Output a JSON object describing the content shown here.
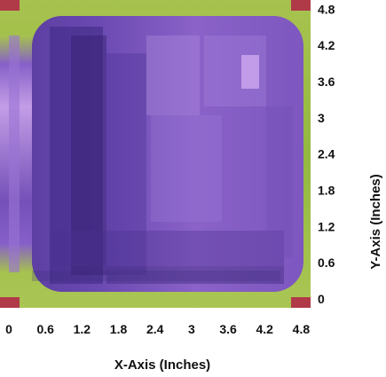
{
  "chart_data": {
    "type": "heatmap",
    "title": "",
    "xlabel": "X-Axis (Inches)",
    "ylabel": "Y-Axis (Inches)",
    "xlim": [
      0,
      5.1
    ],
    "ylim": [
      0,
      5.1
    ],
    "x_ticks": [
      "0",
      "0.6",
      "1.2",
      "1.8",
      "2.4",
      "3",
      "3.6",
      "4.2",
      "4.8"
    ],
    "y_ticks": [
      "4.8",
      "4.2",
      "3.6",
      "3",
      "2.4",
      "1.8",
      "1.2",
      "0.6",
      "0"
    ],
    "x_tick_values": [
      0,
      0.6,
      1.2,
      1.8,
      2.4,
      3,
      3.6,
      4.2,
      4.8
    ],
    "y_tick_values": [
      4.8,
      4.2,
      3.6,
      3,
      2.4,
      1.8,
      1.2,
      0.6,
      0
    ],
    "legend": "none",
    "colors": {
      "corner": "#b03a48",
      "edge": "#93b840",
      "interior": "#8a5fc6",
      "interior_dark": "#4a3090",
      "interior_light": "#c8a2ec"
    },
    "grid": false
  }
}
